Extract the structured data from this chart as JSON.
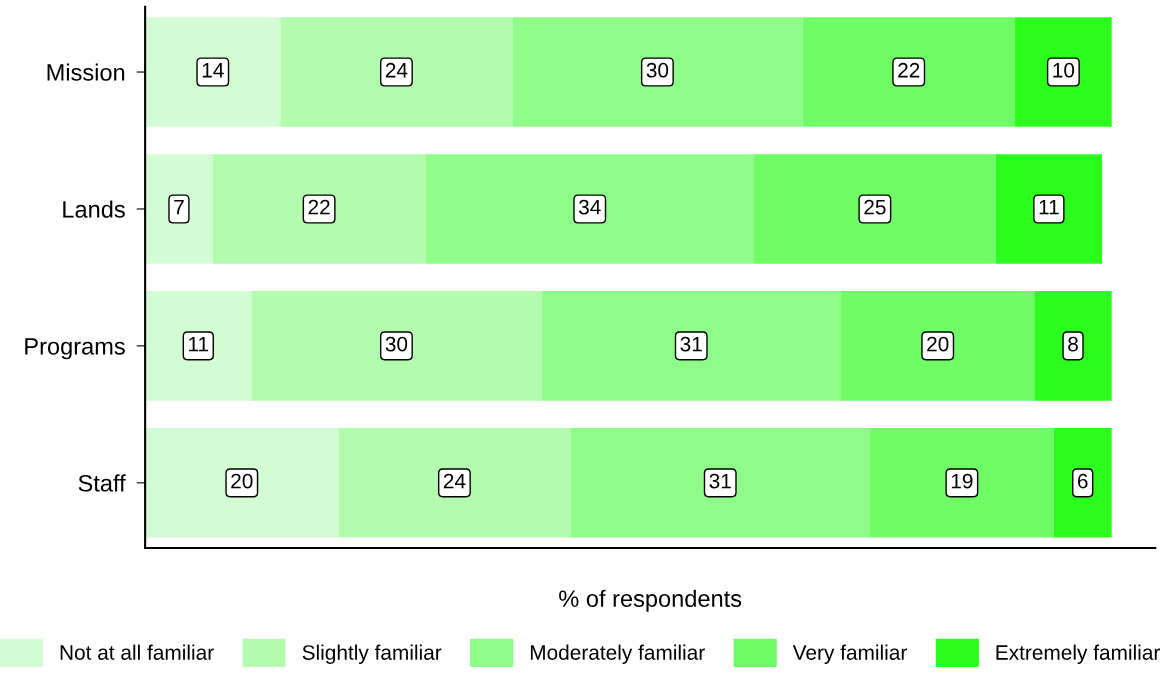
{
  "chart_data": {
    "type": "bar",
    "orientation": "horizontal",
    "stacked": true,
    "xlabel": "% of respondents",
    "categories": [
      "Mission",
      "Lands",
      "Programs",
      "Staff"
    ],
    "series": [
      {
        "name": "Not at all familiar",
        "color": "#d4fcd4",
        "values": [
          14,
          7,
          11,
          20
        ]
      },
      {
        "name": "Slightly familiar",
        "color": "#b3fcaf",
        "values": [
          24,
          22,
          30,
          24
        ]
      },
      {
        "name": "Moderately familiar",
        "color": "#8ffc89",
        "values": [
          30,
          34,
          31,
          31
        ]
      },
      {
        "name": "Very familiar",
        "color": "#6ffc65",
        "values": [
          22,
          25,
          20,
          19
        ]
      },
      {
        "name": "Extremely familiar",
        "color": "#2cfc1d",
        "values": [
          10,
          11,
          8,
          6
        ]
      }
    ],
    "data_labels": true,
    "legend": "bottom",
    "grid": false
  }
}
